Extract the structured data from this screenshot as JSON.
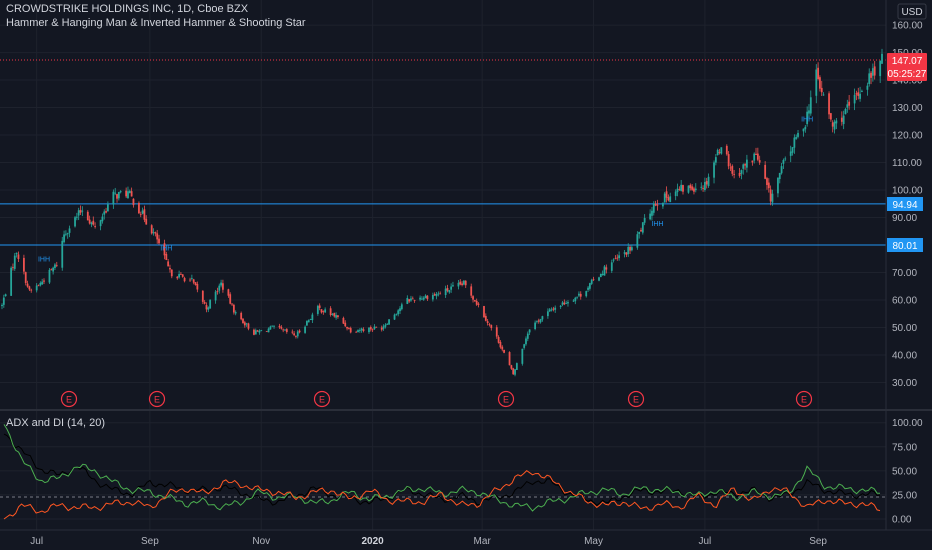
{
  "header": {
    "title_line": "CROWDSTRIKE HOLDINGS INC, 1D, Cboe BZX",
    "indicator_line": "Hammer & Hanging Man & Inverted Hammer & Shooting Star",
    "currency": "USD"
  },
  "price_labels": {
    "last_price": "147.07",
    "countdown": "05:25:27",
    "level_1": "94.94",
    "level_2": "80.01"
  },
  "lower_pane": {
    "title": "ADX and DI (14, 20)"
  },
  "colors": {
    "background": "#131722",
    "up_candle": "#26a69a",
    "down_candle": "#ef5350",
    "level_line": "#2196f3",
    "last_price_badge": "#f23645",
    "adx_line": "#000000",
    "plus_di_line": "#4caf50",
    "minus_di_line": "#ff5722",
    "earnings_marker": "#f23645"
  },
  "chart_data": [
    {
      "type": "candlestick",
      "title": "CROWDSTRIKE HOLDINGS INC, 1D, Cboe BZX",
      "x_tick_labels": [
        "Jul",
        "Sep",
        "Nov",
        "2020",
        "Mar",
        "May",
        "Jul",
        "Sep"
      ],
      "y_tick_labels": [
        "30.00",
        "40.00",
        "50.00",
        "60.00",
        "70.00",
        "80.00",
        "90.00",
        "100.00",
        "110.00",
        "120.00",
        "130.00",
        "140.00",
        "150.00",
        "160.00"
      ],
      "ylim": [
        25,
        163
      ],
      "horizontal_levels": [
        94.94,
        80.01
      ],
      "last_price": 147.07,
      "earnings_marker_label": "E",
      "earnings_marker_months": [
        "Sep 2019",
        "Sep 2019",
        "Dec 2019",
        "Mar 2020",
        "Jun 2020",
        "Sep 2020"
      ],
      "approximate_close_path": [
        {
          "date": "2019-06-12",
          "close": 58
        },
        {
          "date": "2019-06-20",
          "close": 78
        },
        {
          "date": "2019-06-27",
          "close": 63
        },
        {
          "date": "2019-07-03",
          "close": 66
        },
        {
          "date": "2019-07-12",
          "close": 73
        },
        {
          "date": "2019-07-16",
          "close": 84
        },
        {
          "date": "2019-07-26",
          "close": 93
        },
        {
          "date": "2019-08-02",
          "close": 86
        },
        {
          "date": "2019-08-12",
          "close": 98
        },
        {
          "date": "2019-08-20",
          "close": 99
        },
        {
          "date": "2019-08-28",
          "close": 91
        },
        {
          "date": "2019-09-05",
          "close": 82
        },
        {
          "date": "2019-09-12",
          "close": 70
        },
        {
          "date": "2019-09-24",
          "close": 67
        },
        {
          "date": "2019-10-02",
          "close": 57
        },
        {
          "date": "2019-10-10",
          "close": 66
        },
        {
          "date": "2019-10-18",
          "close": 55
        },
        {
          "date": "2019-10-28",
          "close": 48
        },
        {
          "date": "2019-11-08",
          "close": 50
        },
        {
          "date": "2019-11-20",
          "close": 47
        },
        {
          "date": "2019-12-02",
          "close": 57
        },
        {
          "date": "2019-12-12",
          "close": 54
        },
        {
          "date": "2019-12-20",
          "close": 49
        },
        {
          "date": "2020-01-06",
          "close": 50
        },
        {
          "date": "2020-01-20",
          "close": 60
        },
        {
          "date": "2020-02-05",
          "close": 62
        },
        {
          "date": "2020-02-20",
          "close": 66
        },
        {
          "date": "2020-02-28",
          "close": 58
        },
        {
          "date": "2020-03-10",
          "close": 45
        },
        {
          "date": "2020-03-18",
          "close": 33
        },
        {
          "date": "2020-03-27",
          "close": 50
        },
        {
          "date": "2020-04-09",
          "close": 57
        },
        {
          "date": "2020-04-24",
          "close": 62
        },
        {
          "date": "2020-05-08",
          "close": 72
        },
        {
          "date": "2020-05-22",
          "close": 79
        },
        {
          "date": "2020-06-03",
          "close": 95
        },
        {
          "date": "2020-06-17",
          "close": 100
        },
        {
          "date": "2020-07-01",
          "close": 102
        },
        {
          "date": "2020-07-10",
          "close": 117
        },
        {
          "date": "2020-07-17",
          "close": 105
        },
        {
          "date": "2020-07-29",
          "close": 113
        },
        {
          "date": "2020-08-06",
          "close": 97
        },
        {
          "date": "2020-08-14",
          "close": 111
        },
        {
          "date": "2020-08-25",
          "close": 125
        },
        {
          "date": "2020-08-31",
          "close": 142
        },
        {
          "date": "2020-09-09",
          "close": 123
        },
        {
          "date": "2020-09-17",
          "close": 129
        },
        {
          "date": "2020-09-28",
          "close": 140
        },
        {
          "date": "2020-10-06",
          "close": 147
        }
      ]
    },
    {
      "type": "line",
      "title": "ADX and DI (14, 20)",
      "y_tick_labels": [
        "100.00",
        "75.00",
        "50.00",
        "25.00",
        "0.00"
      ],
      "ylim": [
        -8,
        108
      ],
      "reference_line": 20,
      "series": [
        {
          "name": "ADX",
          "approximate_values": [
            90,
            70,
            52,
            45,
            55,
            40,
            30,
            26,
            38,
            35,
            30,
            30,
            33,
            28,
            20,
            18,
            24,
            32,
            25,
            22,
            17,
            22,
            30,
            26,
            20,
            24,
            18,
            22,
            28,
            40,
            38,
            26,
            20,
            16,
            24,
            30,
            28,
            30,
            22,
            28,
            26,
            30,
            22,
            25,
            38,
            30,
            26,
            25,
            26
          ]
        },
        {
          "name": "+DI",
          "approximate_values": [
            100,
            60,
            40,
            42,
            55,
            50,
            38,
            30,
            28,
            22,
            16,
            18,
            12,
            18,
            28,
            22,
            24,
            16,
            20,
            28,
            20,
            24,
            30,
            32,
            26,
            30,
            28,
            20,
            14,
            12,
            18,
            22,
            28,
            30,
            26,
            32,
            30,
            28,
            24,
            30,
            22,
            28,
            24,
            26,
            52,
            34,
            32,
            30,
            28
          ]
        },
        {
          "name": "-DI",
          "approximate_values": [
            0,
            14,
            8,
            14,
            12,
            12,
            16,
            18,
            12,
            26,
            32,
            26,
            38,
            36,
            30,
            28,
            22,
            28,
            30,
            20,
            30,
            20,
            18,
            18,
            26,
            14,
            16,
            30,
            42,
            50,
            40,
            28,
            18,
            14,
            18,
            10,
            16,
            12,
            24,
            14,
            32,
            18,
            32,
            28,
            12,
            20,
            16,
            16,
            10
          ]
        }
      ]
    }
  ]
}
